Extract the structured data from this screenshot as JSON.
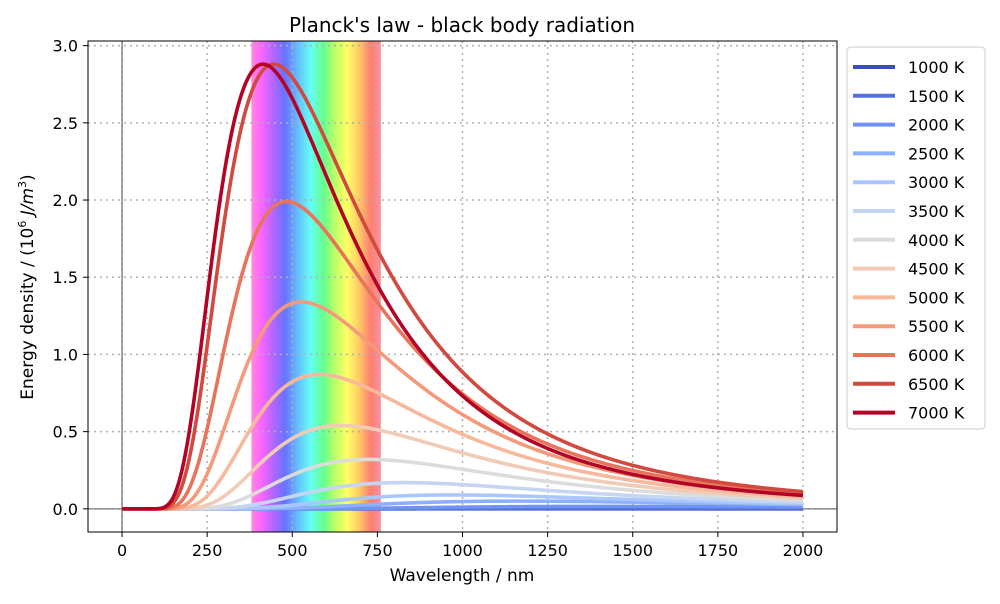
{
  "chart_data": {
    "type": "line",
    "title": "Planck's law - black body radiation",
    "xlabel": "Wavelength / nm",
    "ylabel_parts": {
      "prefix": "Energy density / (10",
      "exp1": "6",
      "mid": " J/m",
      "exp2": "3",
      "suffix": ")"
    },
    "xlim": [
      -100,
      2100
    ],
    "ylim": [
      -0.15,
      3.03
    ],
    "x_ticks": [
      0,
      250,
      500,
      750,
      1000,
      1250,
      1500,
      1750,
      2000
    ],
    "x_tick_labels": [
      "0",
      "250",
      "500",
      "750",
      "1000",
      "1250",
      "1500",
      "1750",
      "2000"
    ],
    "y_ticks": [
      0.0,
      0.5,
      1.0,
      1.5,
      2.0,
      2.5,
      3.0
    ],
    "y_tick_labels": [
      "0.0",
      "0.5",
      "1.0",
      "1.5",
      "2.0",
      "2.5",
      "3.0"
    ],
    "grid": true,
    "legend_position": "outside right",
    "visible_spectrum_band": [
      380,
      760
    ],
    "x_range": [
      0,
      2000
    ],
    "series": [
      {
        "name": "1000 K",
        "temperature_K": 1000,
        "color": "#3b4cc0",
        "peak_value": 0.0006
      },
      {
        "name": "1500 K",
        "temperature_K": 1500,
        "color": "#5470de",
        "peak_value": 0.004
      },
      {
        "name": "2000 K",
        "temperature_K": 2000,
        "color": "#6f92f3",
        "peak_value": 0.016
      },
      {
        "name": "2500 K",
        "temperature_K": 2500,
        "color": "#8db0fe",
        "peak_value": 0.05
      },
      {
        "name": "3000 K",
        "temperature_K": 3000,
        "color": "#aac7fd",
        "peak_value": 0.09
      },
      {
        "name": "3500 K",
        "temperature_K": 3500,
        "color": "#c5d6f2",
        "peak_value": 0.17
      },
      {
        "name": "4000 K",
        "temperature_K": 4000,
        "color": "#dddcdc",
        "peak_value": 0.32
      },
      {
        "name": "4500 K",
        "temperature_K": 4500,
        "color": "#f2cbb7",
        "peak_value": 0.54
      },
      {
        "name": "5000 K",
        "temperature_K": 5000,
        "color": "#f7b89c",
        "peak_value": 0.87
      },
      {
        "name": "5500 K",
        "temperature_K": 5500,
        "color": "#f49a7b",
        "peak_value": 1.34
      },
      {
        "name": "6000 K",
        "temperature_K": 6000,
        "color": "#e7745b",
        "peak_value": 1.99
      },
      {
        "name": "6500 K",
        "temperature_K": 6500,
        "color": "#d1493f",
        "peak_value": 2.88
      },
      {
        "name": "7000 K",
        "temperature_K": 7000,
        "color": "#b40426",
        "peak_value": 2.88
      }
    ]
  }
}
